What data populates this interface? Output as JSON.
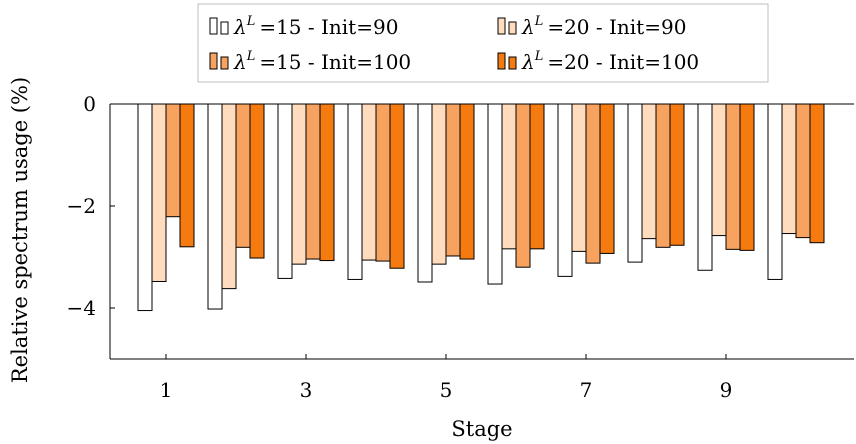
{
  "chart_data": {
    "type": "bar",
    "xlabel": "Stage",
    "ylabel": "Relative spectrum usage (%)",
    "ylim": [
      -5,
      0
    ],
    "yticks": [
      0,
      -2,
      -4
    ],
    "ytick_labels": [
      "0",
      "−2",
      "−4"
    ],
    "categories": [
      1,
      2,
      3,
      4,
      5,
      6,
      7,
      8,
      9,
      10
    ],
    "xtick_labels": [
      "1",
      "3",
      "5",
      "7",
      "9"
    ],
    "xtick_values": [
      1,
      3,
      5,
      7,
      9
    ],
    "grid": false,
    "legend_position": "top",
    "series": [
      {
        "name": "λ^L =15 - Init=90",
        "lambda": "15",
        "init": "90",
        "color": "#ffffff",
        "values": [
          -4.05,
          -4.02,
          -3.42,
          -3.44,
          -3.49,
          -3.53,
          -3.38,
          -3.1,
          -3.26,
          -3.44
        ]
      },
      {
        "name": "λ^L =20 - Init=90",
        "lambda": "20",
        "init": "90",
        "color": "#ffdcbe",
        "values": [
          -3.48,
          -3.62,
          -3.14,
          -3.06,
          -3.14,
          -2.84,
          -2.89,
          -2.64,
          -2.58,
          -2.54
        ]
      },
      {
        "name": "λ^L =15 - Init=100",
        "lambda": "15",
        "init": "100",
        "color": "#f7a25e",
        "values": [
          -2.21,
          -2.81,
          -3.04,
          -3.08,
          -2.98,
          -3.2,
          -3.12,
          -2.81,
          -2.85,
          -2.62
        ]
      },
      {
        "name": "λ^L =20 - Init=100",
        "lambda": "20",
        "init": "100",
        "color": "#f57b10",
        "values": [
          -2.8,
          -3.02,
          -3.07,
          -3.22,
          -3.04,
          -2.84,
          -2.93,
          -2.77,
          -2.87,
          -2.72
        ]
      }
    ],
    "legend": {
      "prefix": "λ",
      "superscript": "L",
      "lambda_eq": "=",
      "sep": " - ",
      "init_prefix": "Init="
    }
  }
}
